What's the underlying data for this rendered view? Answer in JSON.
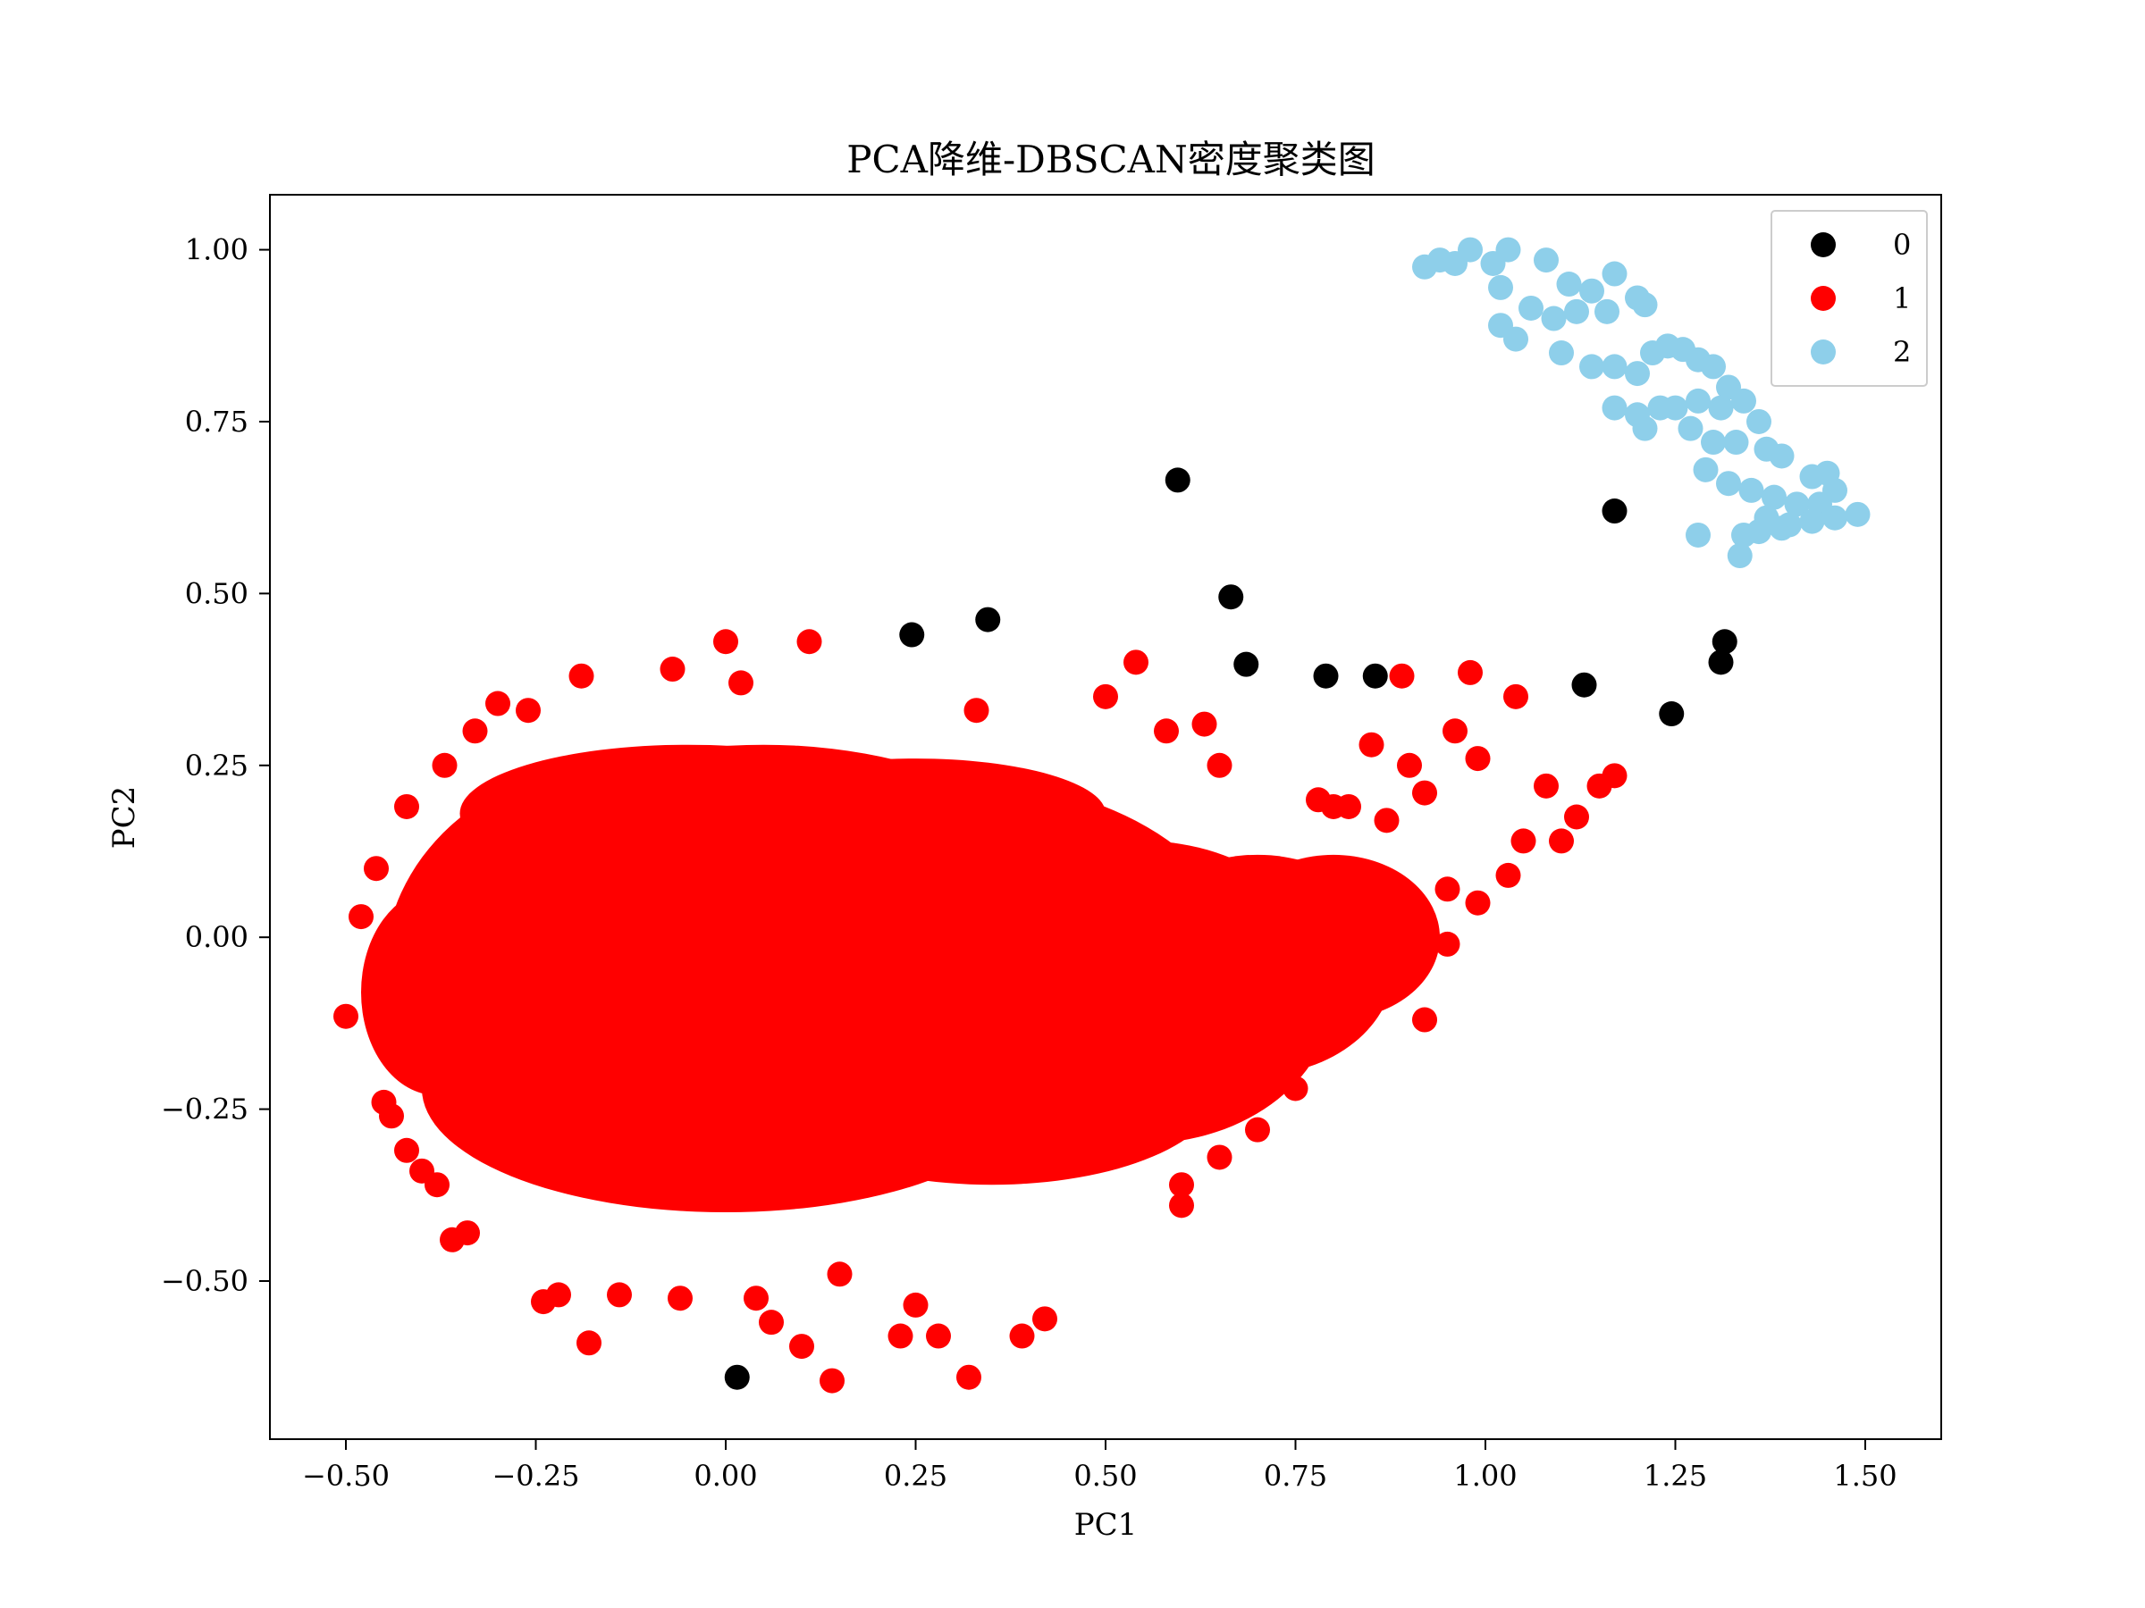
{
  "chart_data": {
    "type": "scatter",
    "title": "PCA降维-DBSCAN密度聚类图",
    "xlabel": "PC1",
    "ylabel": "PC2",
    "xlim": [
      -0.6,
      1.6
    ],
    "ylim": [
      -0.73,
      1.08
    ],
    "xticks": [
      -0.5,
      -0.25,
      0.0,
      0.25,
      0.5,
      0.75,
      1.0,
      1.25,
      1.5
    ],
    "xtick_labels": [
      "−0.50",
      "−0.25",
      "0.00",
      "0.25",
      "0.50",
      "0.75",
      "1.00",
      "1.25",
      "1.50"
    ],
    "yticks": [
      -0.5,
      -0.25,
      0.0,
      0.25,
      0.5,
      0.75,
      1.0
    ],
    "ytick_labels": [
      "−0.50",
      "−0.25",
      "0.00",
      "0.25",
      "0.50",
      "0.75",
      "1.00"
    ],
    "grid": false,
    "legend_position": "top-right",
    "series": [
      {
        "name": "0",
        "color": "#000000",
        "points": [
          [
            0.015,
            -0.64
          ],
          [
            0.245,
            0.44
          ],
          [
            0.345,
            0.462
          ],
          [
            0.595,
            0.665
          ],
          [
            0.665,
            0.495
          ],
          [
            0.685,
            0.397
          ],
          [
            0.79,
            0.38
          ],
          [
            0.855,
            0.38
          ],
          [
            1.13,
            0.367
          ],
          [
            1.17,
            0.62
          ],
          [
            1.245,
            0.325
          ],
          [
            1.31,
            0.4
          ],
          [
            1.315,
            0.43
          ]
        ]
      },
      {
        "name": "1",
        "color": "#ff0000",
        "points": [
          [
            -0.5,
            -0.115
          ],
          [
            -0.48,
            0.03
          ],
          [
            -0.46,
            0.1
          ],
          [
            -0.45,
            -0.24
          ],
          [
            -0.44,
            -0.26
          ],
          [
            -0.42,
            0.19
          ],
          [
            -0.42,
            -0.31
          ],
          [
            -0.4,
            -0.34
          ],
          [
            -0.38,
            -0.36
          ],
          [
            -0.36,
            -0.44
          ],
          [
            -0.34,
            -0.43
          ],
          [
            -0.37,
            0.25
          ],
          [
            -0.33,
            0.3
          ],
          [
            -0.3,
            0.34
          ],
          [
            -0.26,
            0.33
          ],
          [
            -0.24,
            -0.53
          ],
          [
            -0.22,
            -0.52
          ],
          [
            -0.19,
            0.38
          ],
          [
            -0.18,
            -0.59
          ],
          [
            -0.14,
            -0.52
          ],
          [
            -0.07,
            0.39
          ],
          [
            -0.06,
            -0.525
          ],
          [
            0.0,
            0.43
          ],
          [
            0.02,
            0.37
          ],
          [
            0.04,
            -0.525
          ],
          [
            0.06,
            -0.56
          ],
          [
            0.1,
            -0.595
          ],
          [
            0.11,
            0.43
          ],
          [
            0.14,
            -0.645
          ],
          [
            0.15,
            -0.49
          ],
          [
            0.23,
            -0.58
          ],
          [
            0.25,
            -0.535
          ],
          [
            0.28,
            -0.58
          ],
          [
            0.32,
            -0.64
          ],
          [
            0.33,
            0.33
          ],
          [
            0.39,
            -0.58
          ],
          [
            0.42,
            -0.555
          ],
          [
            0.5,
            0.35
          ],
          [
            0.54,
            0.4
          ],
          [
            0.58,
            0.3
          ],
          [
            0.63,
            0.31
          ],
          [
            0.65,
            0.25
          ],
          [
            0.6,
            -0.36
          ],
          [
            0.6,
            -0.39
          ],
          [
            0.65,
            -0.32
          ],
          [
            0.7,
            -0.28
          ],
          [
            0.75,
            -0.22
          ],
          [
            0.78,
            0.2
          ],
          [
            0.8,
            0.19
          ],
          [
            0.82,
            0.19
          ],
          [
            0.85,
            0.28
          ],
          [
            0.87,
            0.17
          ],
          [
            0.89,
            0.38
          ],
          [
            0.9,
            0.25
          ],
          [
            0.92,
            0.21
          ],
          [
            0.96,
            0.3
          ],
          [
            0.98,
            0.385
          ],
          [
            0.99,
            0.26
          ],
          [
            1.04,
            0.35
          ],
          [
            1.08,
            0.22
          ],
          [
            1.12,
            0.175
          ],
          [
            1.15,
            0.22
          ],
          [
            1.17,
            0.235
          ],
          [
            1.1,
            0.14
          ],
          [
            1.05,
            0.14
          ],
          [
            1.03,
            0.09
          ],
          [
            0.99,
            0.05
          ],
          [
            0.95,
            0.07
          ],
          [
            0.9,
            0.02
          ],
          [
            0.95,
            -0.01
          ],
          [
            0.92,
            -0.12
          ],
          [
            0.88,
            -0.05
          ],
          [
            0.85,
            -0.09
          ],
          [
            0.8,
            -0.12
          ],
          [
            0.78,
            -0.16
          ]
        ]
      },
      {
        "name": "2",
        "color": "#8ecfea",
        "points": [
          [
            0.92,
            0.975
          ],
          [
            0.94,
            0.985
          ],
          [
            0.96,
            0.98
          ],
          [
            0.98,
            1.0
          ],
          [
            1.01,
            0.98
          ],
          [
            1.03,
            1.0
          ],
          [
            1.08,
            0.985
          ],
          [
            1.17,
            0.965
          ],
          [
            1.02,
            0.945
          ],
          [
            1.02,
            0.89
          ],
          [
            1.04,
            0.87
          ],
          [
            1.06,
            0.915
          ],
          [
            1.09,
            0.9
          ],
          [
            1.11,
            0.95
          ],
          [
            1.14,
            0.94
          ],
          [
            1.12,
            0.91
          ],
          [
            1.16,
            0.91
          ],
          [
            1.2,
            0.93
          ],
          [
            1.21,
            0.92
          ],
          [
            1.1,
            0.85
          ],
          [
            1.14,
            0.83
          ],
          [
            1.17,
            0.83
          ],
          [
            1.2,
            0.82
          ],
          [
            1.22,
            0.85
          ],
          [
            1.24,
            0.86
          ],
          [
            1.26,
            0.855
          ],
          [
            1.28,
            0.84
          ],
          [
            1.3,
            0.83
          ],
          [
            1.32,
            0.8
          ],
          [
            1.34,
            0.78
          ],
          [
            1.36,
            0.75
          ],
          [
            1.17,
            0.77
          ],
          [
            1.2,
            0.76
          ],
          [
            1.23,
            0.77
          ],
          [
            1.25,
            0.77
          ],
          [
            1.28,
            0.78
          ],
          [
            1.31,
            0.77
          ],
          [
            1.21,
            0.74
          ],
          [
            1.27,
            0.74
          ],
          [
            1.3,
            0.72
          ],
          [
            1.33,
            0.72
          ],
          [
            1.37,
            0.71
          ],
          [
            1.39,
            0.7
          ],
          [
            1.43,
            0.67
          ],
          [
            1.45,
            0.675
          ],
          [
            1.46,
            0.65
          ],
          [
            1.29,
            0.68
          ],
          [
            1.32,
            0.66
          ],
          [
            1.35,
            0.65
          ],
          [
            1.38,
            0.64
          ],
          [
            1.41,
            0.63
          ],
          [
            1.44,
            0.63
          ],
          [
            1.37,
            0.61
          ],
          [
            1.4,
            0.6
          ],
          [
            1.43,
            0.605
          ],
          [
            1.46,
            0.61
          ],
          [
            1.49,
            0.615
          ],
          [
            1.34,
            0.585
          ],
          [
            1.36,
            0.59
          ],
          [
            1.39,
            0.595
          ],
          [
            1.28,
            0.585
          ],
          [
            1.335,
            0.555
          ]
        ]
      }
    ]
  }
}
